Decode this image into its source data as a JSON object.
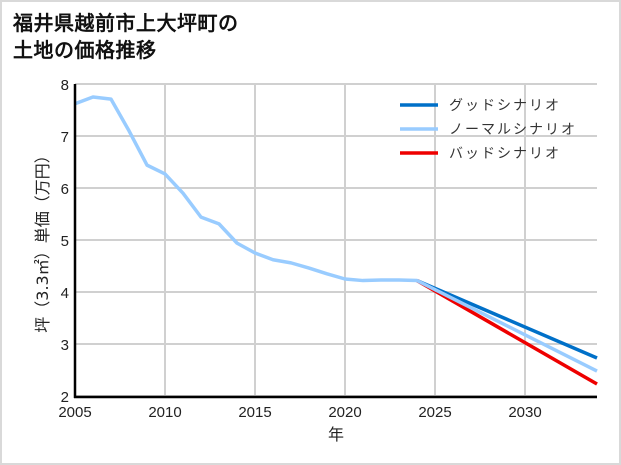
{
  "title_line1": "福井県越前市上大坪町の",
  "title_line2": "土地の価格推移",
  "chart_data": {
    "type": "line",
    "title": "福井県越前市上大坪町の土地の価格推移",
    "xlabel": "年",
    "ylabel": "坪（3.3㎡）単価（万円）",
    "xlim": [
      2005,
      2034
    ],
    "ylim": [
      2,
      8
    ],
    "xticks": [
      2005,
      2010,
      2015,
      2020,
      2025,
      2030
    ],
    "yticks": [
      2,
      3,
      4,
      5,
      6,
      7,
      8
    ],
    "grid": true,
    "legend_position": "upper right",
    "series": [
      {
        "name": "グッドシナリオ",
        "color": "#0070c8",
        "x": [
          2024,
          2034
        ],
        "values": [
          4.22,
          2.73
        ]
      },
      {
        "name": "ノーマルシナリオ",
        "color": "#99ccff",
        "x": [
          2005,
          2006,
          2007,
          2008,
          2009,
          2010,
          2011,
          2012,
          2013,
          2014,
          2015,
          2016,
          2017,
          2018,
          2019,
          2020,
          2021,
          2022,
          2023,
          2024,
          2034
        ],
        "values": [
          7.62,
          7.75,
          7.71,
          7.1,
          6.44,
          6.27,
          5.9,
          5.44,
          5.31,
          4.94,
          4.75,
          4.62,
          4.56,
          4.46,
          4.35,
          4.25,
          4.22,
          4.23,
          4.23,
          4.22,
          2.48
        ]
      },
      {
        "name": "バッドシナリオ",
        "color": "#ee0000",
        "x": [
          2024,
          2034
        ],
        "values": [
          4.22,
          2.23
        ]
      }
    ]
  }
}
